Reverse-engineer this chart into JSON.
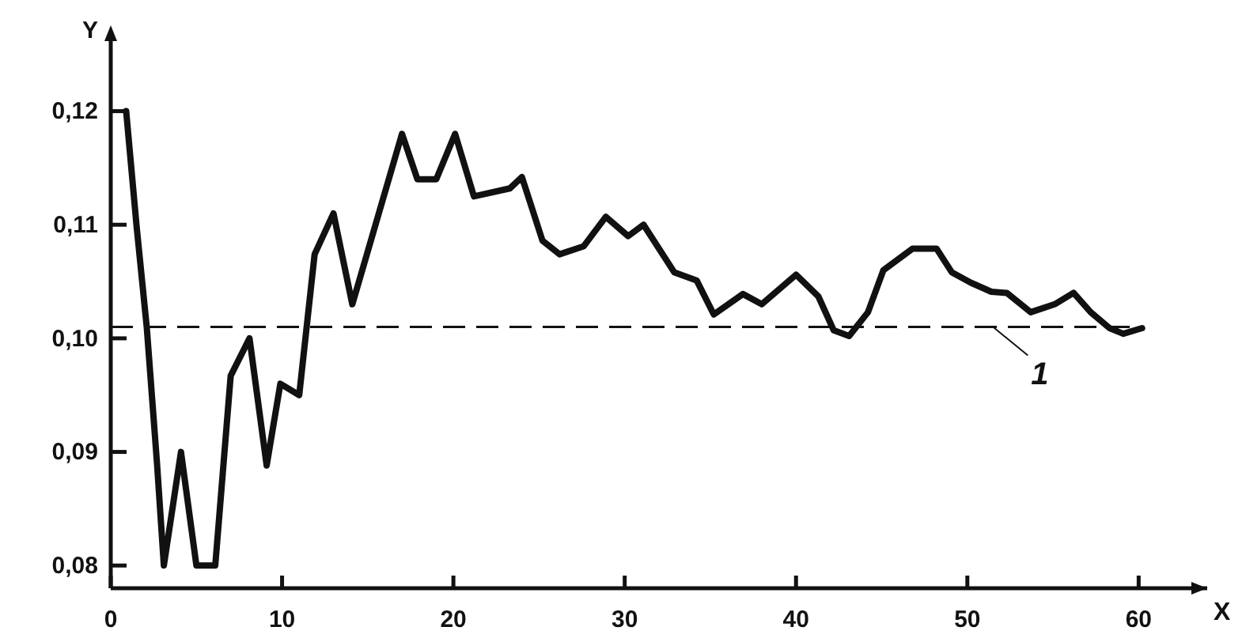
{
  "chart_data": {
    "type": "line",
    "xlabel": "X",
    "ylabel": "Y",
    "x": [
      0.9,
      1.5,
      2.1,
      2.7,
      3.1,
      4.1,
      5.0,
      6.1,
      7.0,
      8.1,
      9.1,
      9.9,
      11.0,
      11.9,
      13.0,
      14.1,
      17.0,
      17.9,
      19.0,
      20.1,
      21.2,
      23.3,
      24.0,
      25.2,
      26.2,
      27.6,
      28.9,
      30.2,
      31.1,
      32.9,
      34.2,
      35.2,
      36.9,
      38.0,
      40.0,
      41.3,
      42.2,
      43.1,
      44.2,
      45.1,
      46.8,
      48.2,
      49.1,
      50.2,
      51.4,
      52.3,
      53.7,
      55.1,
      56.2,
      57.2,
      58.3,
      59.1,
      60.2
    ],
    "series": [
      {
        "color": "#111111",
        "values": [
          0.12,
          0.11,
          0.101,
          0.089,
          0.08,
          0.09,
          0.08,
          0.08,
          0.0967,
          0.1,
          0.0888,
          0.096,
          0.095,
          0.1074,
          0.111,
          0.103,
          0.118,
          0.114,
          0.114,
          0.118,
          0.1125,
          0.1132,
          0.1142,
          0.1086,
          0.1074,
          0.1081,
          0.1107,
          0.109,
          0.11,
          0.1058,
          0.1051,
          0.1021,
          0.1039,
          0.103,
          0.1056,
          0.1037,
          0.1007,
          0.1002,
          0.1023,
          0.106,
          0.1079,
          0.1079,
          0.1058,
          0.1049,
          0.1041,
          0.104,
          0.1023,
          0.103,
          0.104,
          0.1023,
          0.1009,
          0.1004,
          0.1009
        ]
      }
    ],
    "xlim": [
      0,
      64
    ],
    "xticks": [
      0,
      10,
      20,
      30,
      40,
      50,
      60
    ],
    "ylim": [
      0.078,
      0.127
    ],
    "yticks": [
      {
        "value": 0.08,
        "label": "0,08"
      },
      {
        "value": 0.09,
        "label": "0,09"
      },
      {
        "value": 0.1,
        "label": "0,10"
      },
      {
        "value": 0.11,
        "label": "0,11"
      },
      {
        "value": 0.12,
        "label": "0,12"
      }
    ],
    "ref_lines": [
      {
        "axis": "y",
        "value": 0.101,
        "line_style": "dashed",
        "color": "#111111"
      }
    ],
    "annotations": [
      {
        "text": "1",
        "x": 51.5,
        "y": 0.101
      }
    ],
    "line_style": "solid"
  }
}
